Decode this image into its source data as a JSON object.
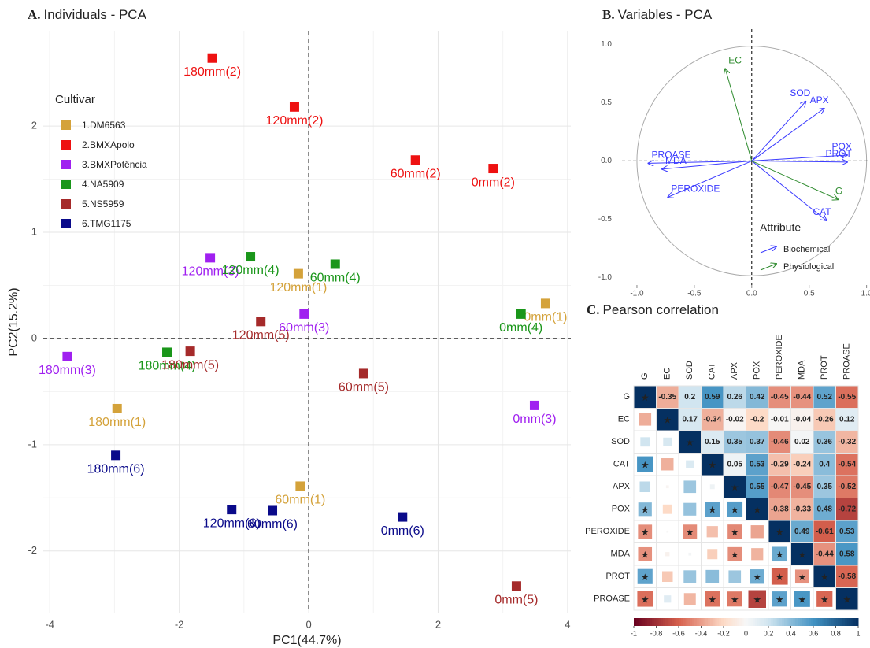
{
  "chart_data": [
    {
      "type": "scatter",
      "panel_label": "A.",
      "title": "Individuals - PCA",
      "x_label": "PC1(44.7%)",
      "y_label": "PC2(15.2%)",
      "legend_title": "Cultivar",
      "xlim": [
        -4.1,
        4.05
      ],
      "ylim": [
        -2.58,
        2.89
      ],
      "xticks": [
        -4,
        -2,
        0,
        2,
        4
      ],
      "yticks": [
        -2,
        -1,
        0,
        1,
        2
      ],
      "grid": true,
      "hline": 0,
      "vline": 0,
      "series": [
        {
          "name": "1.DM6563",
          "color": "#d4a23a",
          "x": [
            3.66,
            -0.13,
            -0.16,
            -2.96
          ],
          "y": [
            0.33,
            -1.39,
            0.61,
            -0.66
          ],
          "labels": [
            "0mm(1)",
            "60mm(1)",
            "120mm(1)",
            "180mm(1)"
          ]
        },
        {
          "name": "2.BMXApolo",
          "color": "#ee1111",
          "x": [
            2.85,
            1.65,
            -0.22,
            -1.49
          ],
          "y": [
            1.6,
            1.68,
            2.18,
            2.64
          ],
          "labels": [
            "0mm(2)",
            "60mm(2)",
            "120mm(2)",
            "180mm(2)"
          ]
        },
        {
          "name": "3.BMXPotência",
          "color": "#a020f0",
          "x": [
            3.49,
            -0.07,
            -1.52,
            -3.73
          ],
          "y": [
            -0.63,
            0.23,
            0.76,
            -0.17
          ],
          "labels": [
            "0mm(3)",
            "60mm(3)",
            "120mm(3)",
            "180mm(3)"
          ]
        },
        {
          "name": "4.NA5909",
          "color": "#1a961a",
          "x": [
            3.28,
            0.41,
            -0.9,
            -2.19
          ],
          "y": [
            0.23,
            0.7,
            0.77,
            -0.13
          ],
          "labels": [
            "0mm(4)",
            "60mm(4)",
            "120mm(4)",
            "180mm(4)"
          ]
        },
        {
          "name": "5.NS5959",
          "color": "#a52a2a",
          "x": [
            3.21,
            0.85,
            -0.74,
            -1.83
          ],
          "y": [
            -2.33,
            -0.33,
            0.16,
            -0.12
          ],
          "labels": [
            "0mm(5)",
            "60mm(5)",
            "120mm(5)",
            "180mm(5)"
          ]
        },
        {
          "name": "6.TMG1175",
          "color": "#0a0a8a",
          "x": [
            1.45,
            -0.56,
            -1.19,
            -2.98
          ],
          "y": [
            -1.68,
            -1.62,
            -1.61,
            -1.1
          ],
          "labels": [
            "0mm(6)",
            "60mm(6)",
            "120mm(6)",
            "180mm(6)"
          ]
        }
      ]
    },
    {
      "type": "arrow",
      "panel_label": "B.",
      "title": "Variables - PCA",
      "legend_title": "Attribute",
      "xlim": [
        -1.13,
        1.03
      ],
      "ylim": [
        -1.05,
        1.13
      ],
      "xticks": [
        {
          "value": -1,
          "label": "-1.0"
        },
        -0.5,
        {
          "value": 0,
          "label": "0.0"
        },
        0.5,
        {
          "value": 1,
          "label": "1.0"
        }
      ],
      "yticks": [
        {
          "value": -1,
          "label": "-1.0"
        },
        -0.5,
        {
          "value": 0,
          "label": "0.0"
        },
        0.5,
        {
          "value": 1,
          "label": "1.0"
        }
      ],
      "hline": 0,
      "vline": 0,
      "series": [
        {
          "name": "Biochemical",
          "color": "#3a3aff",
          "labels": [
            "SOD",
            "APX",
            "POX",
            "PROT",
            "CAT",
            "PROASE",
            "MDA",
            "PEROXIDE"
          ],
          "x": [
            0.47,
            0.63,
            0.83,
            0.83,
            0.65,
            -0.9,
            -0.78,
            -0.73
          ],
          "y": [
            0.51,
            0.45,
            0.05,
            -0.01,
            -0.51,
            -0.02,
            -0.07,
            -0.31
          ]
        },
        {
          "name": "Physiological",
          "color": "#2e8b2e",
          "labels": [
            "EC",
            "G"
          ],
          "x": [
            -0.23,
            0.75
          ],
          "y": [
            0.79,
            -0.33
          ]
        }
      ]
    },
    {
      "type": "heatmap",
      "panel_label": "C.",
      "title": "Pearson correlation",
      "star": "★",
      "categories": [
        "G",
        "EC",
        "SOD",
        "CAT",
        "APX",
        "POX",
        "PEROXIDE",
        "MDA",
        "PROT",
        "PROASE"
      ],
      "values": [
        [
          1,
          -0.35,
          0.2,
          0.59,
          0.26,
          0.42,
          -0.45,
          -0.44,
          0.52,
          -0.55
        ],
        [
          -0.35,
          1,
          0.17,
          -0.34,
          -0.02,
          -0.2,
          -0.01,
          -0.04,
          -0.26,
          0.12
        ],
        [
          0.2,
          0.17,
          1,
          0.15,
          0.35,
          0.37,
          -0.46,
          0.02,
          0.36,
          -0.32
        ],
        [
          0.59,
          -0.34,
          0.15,
          1,
          0.05,
          0.53,
          -0.29,
          -0.24,
          0.4,
          -0.54
        ],
        [
          0.26,
          -0.02,
          0.35,
          0.05,
          1,
          0.55,
          -0.47,
          -0.45,
          0.35,
          -0.52
        ],
        [
          0.42,
          -0.2,
          0.37,
          0.53,
          0.55,
          1,
          -0.38,
          -0.33,
          0.48,
          -0.72
        ],
        [
          -0.45,
          -0.01,
          -0.46,
          -0.29,
          -0.47,
          -0.38,
          1,
          0.49,
          -0.61,
          0.53
        ],
        [
          -0.44,
          -0.04,
          0.02,
          -0.24,
          -0.45,
          -0.33,
          0.49,
          1,
          -0.44,
          0.58
        ],
        [
          0.52,
          -0.26,
          0.36,
          0.4,
          0.35,
          0.48,
          -0.61,
          -0.44,
          1,
          -0.58
        ],
        [
          -0.55,
          0.12,
          -0.32,
          -0.54,
          -0.52,
          -0.72,
          0.53,
          0.58,
          -0.58,
          1
        ]
      ],
      "significant": [
        [
          true,
          false,
          false,
          true,
          false,
          true,
          true,
          true,
          true,
          true
        ],
        [
          false,
          true,
          false,
          false,
          false,
          false,
          false,
          false,
          false,
          false
        ],
        [
          false,
          false,
          true,
          false,
          false,
          false,
          true,
          false,
          false,
          false
        ],
        [
          true,
          false,
          false,
          true,
          false,
          true,
          false,
          false,
          false,
          true
        ],
        [
          false,
          false,
          false,
          false,
          true,
          true,
          true,
          true,
          false,
          true
        ],
        [
          true,
          false,
          false,
          true,
          true,
          true,
          false,
          false,
          true,
          true
        ],
        [
          true,
          false,
          true,
          false,
          true,
          false,
          true,
          true,
          true,
          true
        ],
        [
          true,
          false,
          false,
          false,
          true,
          false,
          true,
          true,
          true,
          true
        ],
        [
          true,
          false,
          false,
          false,
          false,
          true,
          true,
          true,
          true,
          true
        ],
        [
          true,
          false,
          false,
          true,
          true,
          true,
          true,
          true,
          true,
          true
        ]
      ],
      "colorbar_ticks": [
        -1,
        -0.8,
        -0.6,
        -0.4,
        -0.2,
        0,
        0.2,
        0.4,
        0.6,
        0.8,
        1
      ]
    }
  ]
}
